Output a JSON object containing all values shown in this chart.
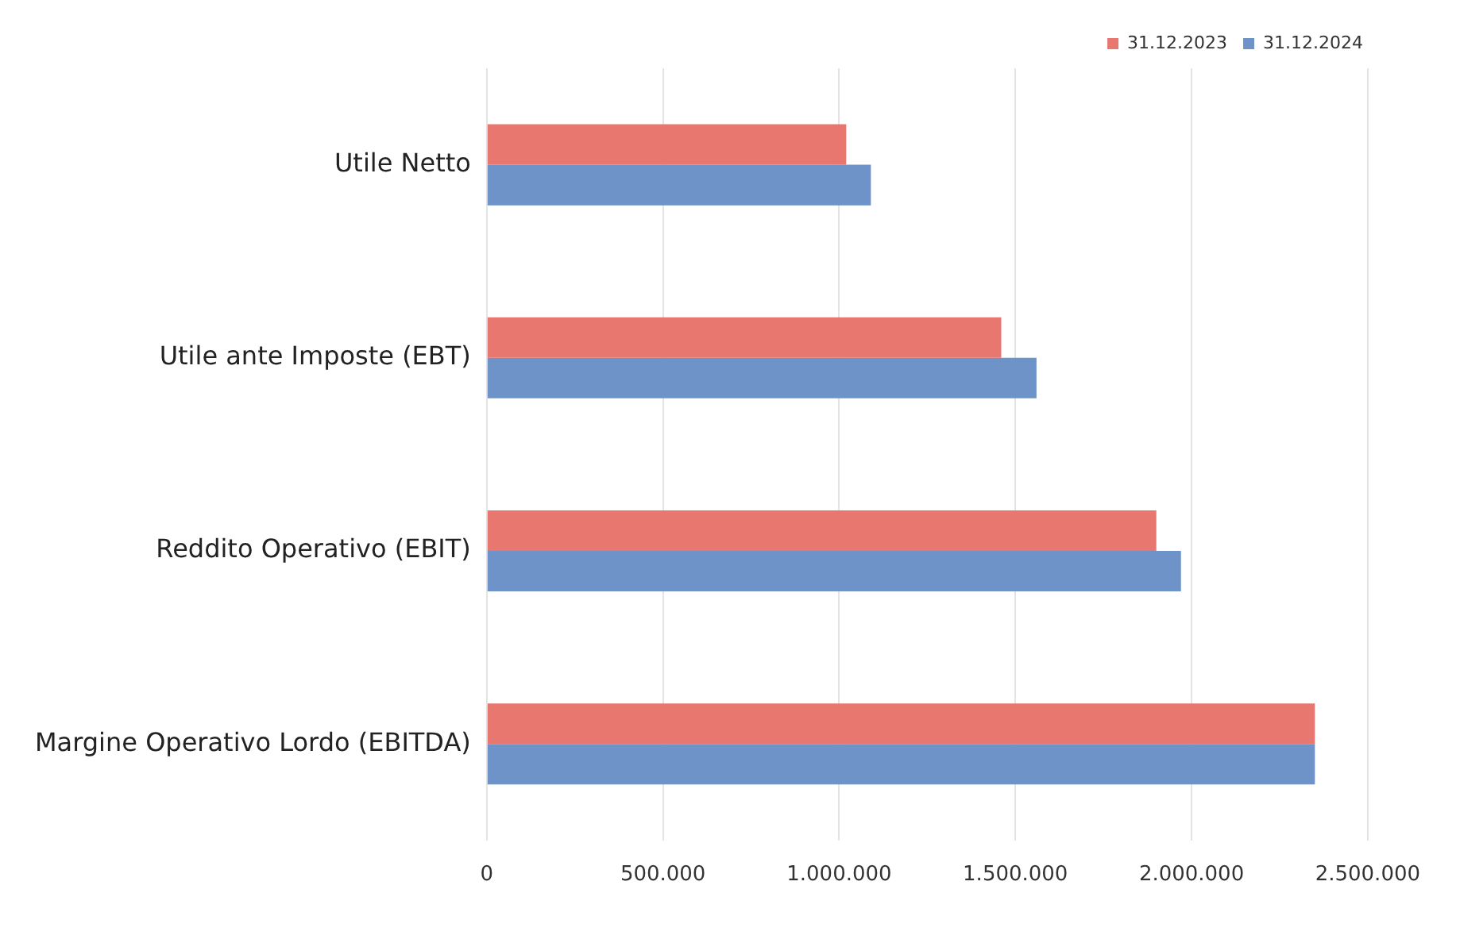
{
  "chart_data": {
    "type": "bar",
    "orientation": "horizontal",
    "categories": [
      "Utile Netto",
      "Utile ante Imposte (EBT)",
      "Reddito Operativo (EBIT)",
      "Margine Operativo Lordo (EBITDA)"
    ],
    "series": [
      {
        "name": "31.12.2023",
        "color": "#e8776f",
        "values": [
          1020000,
          1460000,
          1900000,
          2350000
        ]
      },
      {
        "name": "31.12.2024",
        "color": "#6d93c8",
        "values": [
          1090000,
          1560000,
          1970000,
          2350000
        ]
      }
    ],
    "xlim": [
      0,
      2500000
    ],
    "xticks": [
      0,
      {
        "value": 500000,
        "label": "500.000"
      },
      {
        "value": 1000000,
        "label": "1.000.000"
      },
      {
        "value": 1500000,
        "label": "1.500.000"
      },
      {
        "value": 2000000,
        "label": "2.000.000"
      },
      {
        "value": 2500000,
        "label": "2.500.000"
      }
    ],
    "grid": "x",
    "legend": "top right"
  }
}
